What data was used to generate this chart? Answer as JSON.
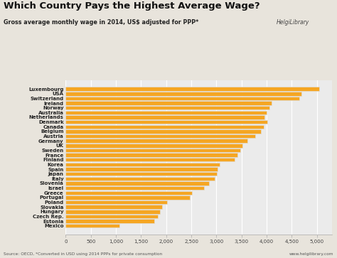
{
  "title": "Which Country Pays the Highest Average Wage?",
  "subtitle": "Gross average monthly wage in 2014, US$ adjusted for PPP*",
  "source_text": "Source: OECD, *Converted in USD using 2014 PPPs for private consumption",
  "website_text": "www.helgilibrary.com",
  "countries": [
    "Luxembourg",
    "USA",
    "Switzerland",
    "Ireland",
    "Norway",
    "Australia",
    "Netherlands",
    "Denmark",
    "Canada",
    "Belgium",
    "Austria",
    "Germany",
    "UK",
    "Sweden",
    "France",
    "Finland",
    "Korea",
    "Spain",
    "Japan",
    "Italy",
    "Slovenia",
    "Israel",
    "Greece",
    "Portugal",
    "Poland",
    "Slovakia",
    "Hungary",
    "Czech Rep.",
    "Estonia",
    "Mexico"
  ],
  "values": [
    5050,
    4700,
    4650,
    4100,
    4050,
    4000,
    3960,
    4020,
    3940,
    3880,
    3780,
    3620,
    3520,
    3470,
    3420,
    3360,
    3060,
    3020,
    3010,
    2970,
    2860,
    2760,
    2520,
    2470,
    2020,
    1920,
    1870,
    1830,
    1770,
    1070
  ],
  "bar_color": "#F5A623",
  "bar_gap_color": "#E0DDD6",
  "chart_bg_color": "#EBEBEB",
  "fig_bg_color": "#E8E4DC",
  "title_color": "#111111",
  "subtitle_color": "#222222",
  "source_color": "#555555",
  "xlim": [
    0,
    5300
  ],
  "xticks": [
    0,
    500,
    1000,
    1500,
    2000,
    2500,
    3000,
    3500,
    4000,
    4500,
    5000
  ],
  "xtick_labels": [
    "0",
    "500",
    "1,000",
    "1,500",
    "2,000",
    "2,500",
    "3,000",
    "3,500",
    "4,000",
    "4,500",
    "5,000"
  ]
}
